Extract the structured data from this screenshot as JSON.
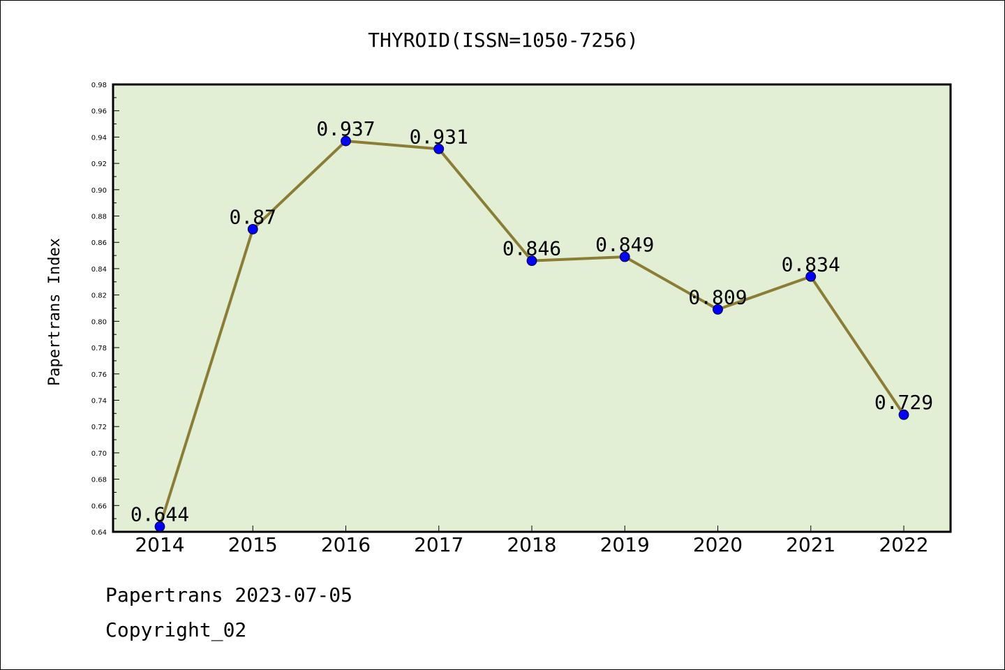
{
  "chart_data": {
    "type": "line",
    "title": "THYROID(ISSN=1050-7256)",
    "xlabel": "",
    "ylabel": "Papertrans Index",
    "categories": [
      "2014",
      "2015",
      "2016",
      "2017",
      "2018",
      "2019",
      "2020",
      "2021",
      "2022"
    ],
    "series": [
      {
        "values": [
          0.644,
          0.87,
          0.937,
          0.931,
          0.846,
          0.849,
          0.809,
          0.834,
          0.729
        ],
        "data_labels": [
          "0.644",
          "0.87",
          "0.937",
          "0.931",
          "0.846",
          "0.849",
          "0.809",
          "0.834",
          "0.729"
        ]
      }
    ],
    "ylim": [
      0.64,
      0.98
    ],
    "yticks": [
      "0.64",
      "0.66",
      "0.68",
      "0.70",
      "0.72",
      "0.74",
      "0.76",
      "0.78",
      "0.80",
      "0.82",
      "0.84",
      "0.86",
      "0.88",
      "0.90",
      "0.92",
      "0.94",
      "0.96",
      "0.98"
    ],
    "grid": false,
    "legend": "none",
    "colors": {
      "plot_background": "#e2efd5",
      "line": "#8c7d35",
      "marker": "#0000ff"
    }
  },
  "footer": {
    "line1": "Papertrans 2023-07-05",
    "line2": "Copyright_02"
  }
}
